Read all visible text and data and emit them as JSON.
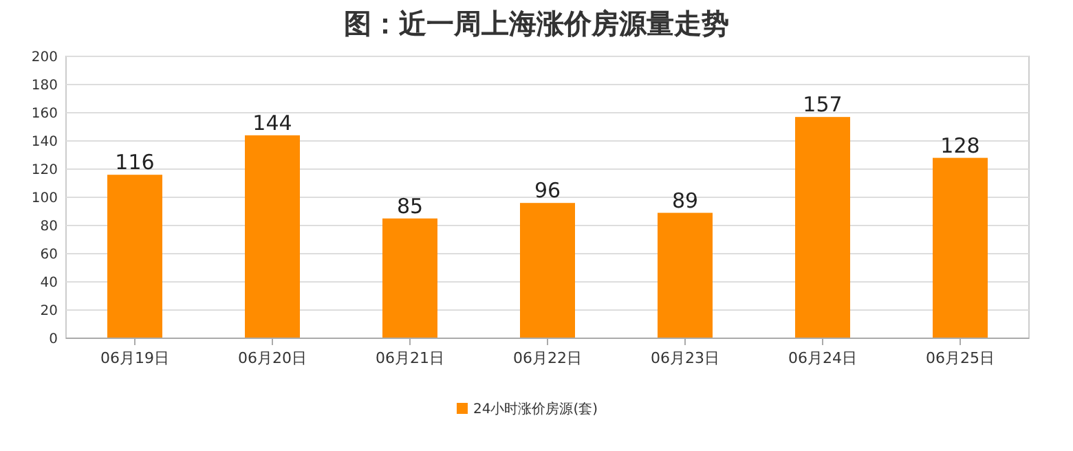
{
  "chart_data": {
    "type": "bar",
    "title": "图：近一周上海涨价房源量走势",
    "categories": [
      "06月19日",
      "06月20日",
      "06月21日",
      "06月22日",
      "06月23日",
      "06月24日",
      "06月25日"
    ],
    "series": [
      {
        "name": "24小时涨价房源(套)",
        "color": "#ff8c00",
        "values": [
          116,
          144,
          85,
          96,
          89,
          157,
          128
        ]
      }
    ],
    "ylim": [
      0,
      200
    ],
    "yticks": [
      0,
      20,
      40,
      60,
      80,
      100,
      120,
      140,
      160,
      180,
      200
    ],
    "grid": "y",
    "legend": "bottom",
    "data_labels": true
  }
}
